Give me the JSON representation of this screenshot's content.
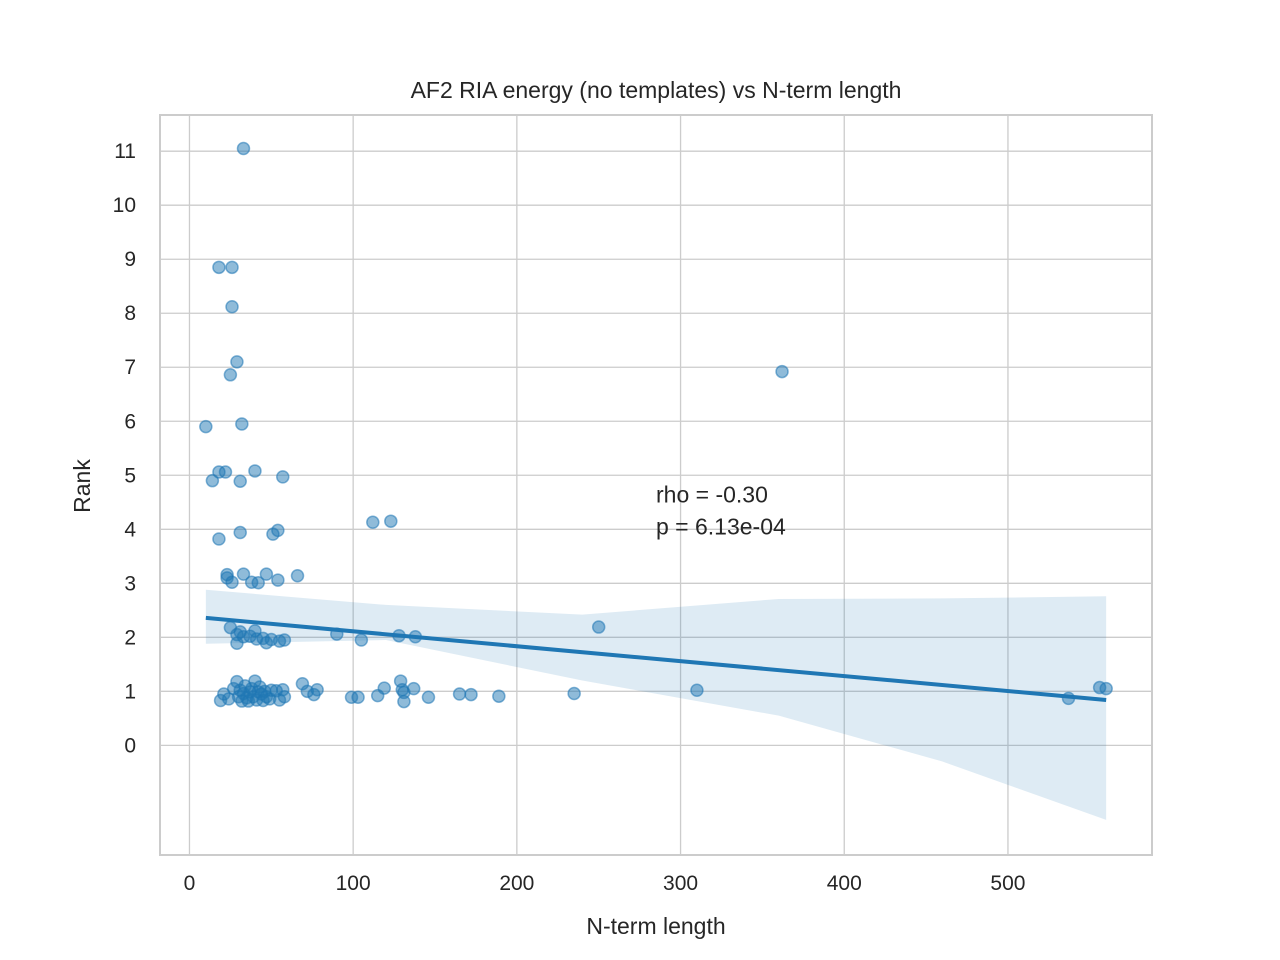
{
  "chart_data": {
    "type": "scatter",
    "title": "AF2 RIA energy (no templates) vs N-term length",
    "xlabel": "N-term length",
    "ylabel": "Rank",
    "xlim": [
      -18,
      588
    ],
    "ylim": [
      -2.03,
      11.67
    ],
    "xticks": [
      "0",
      "100",
      "200",
      "300",
      "400",
      "500"
    ],
    "xtick_values": [
      0,
      100,
      200,
      300,
      400,
      500
    ],
    "yticks": [
      "0",
      "1",
      "2",
      "3",
      "4",
      "5",
      "6",
      "7",
      "8",
      "9",
      "10",
      "11"
    ],
    "ytick_values": [
      0,
      1,
      2,
      3,
      4,
      5,
      6,
      7,
      8,
      9,
      10,
      11
    ],
    "grid": true,
    "annotation": {
      "lines": [
        "rho = -0.30",
        "p = 6.13e-04"
      ],
      "x": 285,
      "y": 4.5
    },
    "regression": {
      "x": [
        10,
        560
      ],
      "y": [
        2.36,
        0.84
      ],
      "ci_x": [
        10,
        120,
        240,
        360,
        460,
        560
      ],
      "ci_lower": [
        1.88,
        1.95,
        1.2,
        0.55,
        -0.3,
        -1.38
      ],
      "ci_upper": [
        2.88,
        2.6,
        2.42,
        2.71,
        2.72,
        2.76
      ]
    },
    "series": [
      {
        "color": "#1f77b4",
        "points": [
          [
            33,
            11.05
          ],
          [
            18,
            8.85
          ],
          [
            26,
            8.85
          ],
          [
            26,
            8.12
          ],
          [
            29,
            7.1
          ],
          [
            25,
            6.86
          ],
          [
            362,
            6.92
          ],
          [
            10,
            5.9
          ],
          [
            32,
            5.95
          ],
          [
            18,
            5.06
          ],
          [
            22,
            5.06
          ],
          [
            40,
            5.08
          ],
          [
            14,
            4.9
          ],
          [
            31,
            4.89
          ],
          [
            57,
            4.97
          ],
          [
            112,
            4.13
          ],
          [
            123,
            4.15
          ],
          [
            31,
            3.94
          ],
          [
            18,
            3.82
          ],
          [
            51,
            3.91
          ],
          [
            54,
            3.98
          ],
          [
            23,
            3.16
          ],
          [
            23,
            3.1
          ],
          [
            26,
            3.02
          ],
          [
            33,
            3.17
          ],
          [
            38,
            3.02
          ],
          [
            42,
            3.01
          ],
          [
            47,
            3.17
          ],
          [
            54,
            3.06
          ],
          [
            66,
            3.14
          ],
          [
            250,
            2.19
          ],
          [
            25,
            2.18
          ],
          [
            29,
            2.05
          ],
          [
            29,
            1.89
          ],
          [
            31,
            2.1
          ],
          [
            33,
            2.01
          ],
          [
            37,
            2.02
          ],
          [
            40,
            2.12
          ],
          [
            41,
            1.97
          ],
          [
            45,
            1.98
          ],
          [
            47,
            1.9
          ],
          [
            50,
            1.96
          ],
          [
            55,
            1.93
          ],
          [
            58,
            1.95
          ],
          [
            90,
            2.06
          ],
          [
            105,
            1.95
          ],
          [
            128,
            2.03
          ],
          [
            138,
            2.01
          ],
          [
            19,
            0.83
          ],
          [
            21,
            0.95
          ],
          [
            24,
            0.86
          ],
          [
            27,
            1.05
          ],
          [
            29,
            1.18
          ],
          [
            30,
            0.9
          ],
          [
            31,
            1.02
          ],
          [
            32,
            0.82
          ],
          [
            33,
            0.96
          ],
          [
            34,
            1.1
          ],
          [
            35,
            0.88
          ],
          [
            36,
            0.82
          ],
          [
            37,
            0.99
          ],
          [
            38,
            1.05
          ],
          [
            39,
            0.9
          ],
          [
            40,
            1.19
          ],
          [
            41,
            0.84
          ],
          [
            42,
            0.99
          ],
          [
            43,
            1.08
          ],
          [
            44,
            0.95
          ],
          [
            45,
            0.83
          ],
          [
            46,
            1.0
          ],
          [
            47,
            0.9
          ],
          [
            49,
            0.86
          ],
          [
            50,
            1.02
          ],
          [
            53,
            1.01
          ],
          [
            55,
            0.84
          ],
          [
            57,
            1.03
          ],
          [
            58,
            0.9
          ],
          [
            69,
            1.14
          ],
          [
            72,
            1.0
          ],
          [
            76,
            0.94
          ],
          [
            78,
            1.03
          ],
          [
            99,
            0.89
          ],
          [
            103,
            0.89
          ],
          [
            115,
            0.92
          ],
          [
            119,
            1.06
          ],
          [
            129,
            1.19
          ],
          [
            130,
            1.03
          ],
          [
            131,
            0.81
          ],
          [
            131,
            0.98
          ],
          [
            137,
            1.05
          ],
          [
            146,
            0.89
          ],
          [
            165,
            0.95
          ],
          [
            172,
            0.94
          ],
          [
            189,
            0.91
          ],
          [
            235,
            0.96
          ],
          [
            310,
            1.02
          ],
          [
            537,
            0.87
          ],
          [
            556,
            1.07
          ],
          [
            560,
            1.05
          ]
        ]
      }
    ]
  }
}
